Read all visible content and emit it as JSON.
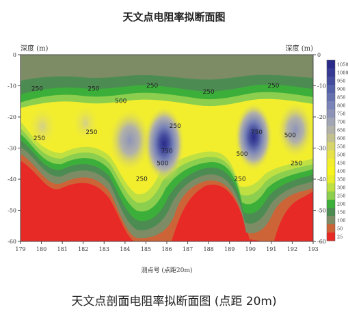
{
  "chart_data": {
    "type": "heatmap",
    "title": "天文点电阻率拟断面图",
    "caption": "天文点剖面电阻率拟断面图 (点距 20m)",
    "xlabel": "测点号 (点距20m)",
    "ylabel_left": "深度 (m)",
    "ylabel_right": "深度 (m)",
    "x_ticks": [
      179,
      180,
      181,
      182,
      183,
      184,
      185,
      186,
      187,
      188,
      189,
      190,
      191,
      192,
      193
    ],
    "y_ticks": [
      0,
      -10,
      -20,
      -30,
      -40,
      -50,
      -60
    ],
    "xlim": [
      179,
      193
    ],
    "ylim": [
      -60,
      0
    ],
    "contour_labels": [
      {
        "text": "250",
        "x": 179.8,
        "y": -11.5
      },
      {
        "text": "250",
        "x": 182.5,
        "y": -11.5
      },
      {
        "text": "250",
        "x": 185.3,
        "y": -10.5
      },
      {
        "text": "250",
        "x": 188.0,
        "y": -12.5
      },
      {
        "text": "250",
        "x": 191.1,
        "y": -10.5
      },
      {
        "text": "500",
        "x": 183.8,
        "y": -15.5
      },
      {
        "text": "250",
        "x": 179.9,
        "y": -27.5
      },
      {
        "text": "250",
        "x": 182.4,
        "y": -25.5
      },
      {
        "text": "250",
        "x": 186.4,
        "y": -23.5
      },
      {
        "text": "750",
        "x": 186.0,
        "y": -31.5
      },
      {
        "text": "500",
        "x": 185.8,
        "y": -35.5
      },
      {
        "text": "250",
        "x": 184.8,
        "y": -40.5
      },
      {
        "text": "750",
        "x": 190.3,
        "y": -25.5
      },
      {
        "text": "500",
        "x": 189.6,
        "y": -32.5
      },
      {
        "text": "250",
        "x": 189.5,
        "y": -40.5
      },
      {
        "text": "500",
        "x": 191.9,
        "y": -26.5
      },
      {
        "text": "250",
        "x": 192.2,
        "y": -35.5
      }
    ],
    "colorbar": {
      "levels": [
        1050,
        1000,
        950,
        900,
        850,
        800,
        750,
        700,
        650,
        600,
        550,
        500,
        450,
        400,
        350,
        300,
        250,
        200,
        150,
        100,
        50,
        25
      ],
      "colors": [
        "#2a2a8a",
        "#363a94",
        "#444c9e",
        "#5460a8",
        "#6672b0",
        "#7a84b8",
        "#8e94b8",
        "#a2a6b4",
        "#b2b2a8",
        "#c2c08e",
        "#d6d46a",
        "#e6e248",
        "#f2ee2e",
        "#f8f41e",
        "#e8ec2a",
        "#bfe042",
        "#8ccf4e",
        "#3caf3a",
        "#4c8c52",
        "#7e8c66",
        "#cc6438",
        "#e82a26"
      ]
    },
    "colors": {
      "surface": "#7e8c66",
      "low": "#e82a26",
      "orange": "#cc6438",
      "high": "#2a2a8a"
    }
  }
}
